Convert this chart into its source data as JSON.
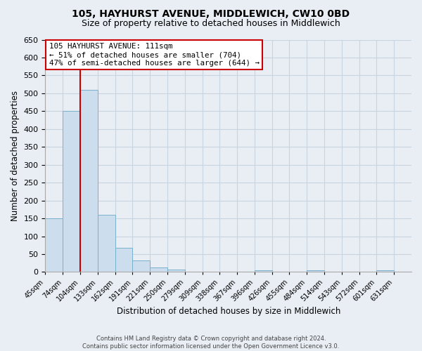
{
  "title": "105, HAYHURST AVENUE, MIDDLEWICH, CW10 0BD",
  "subtitle": "Size of property relative to detached houses in Middlewich",
  "xlabel": "Distribution of detached houses by size in Middlewich",
  "ylabel": "Number of detached properties",
  "footer_line1": "Contains HM Land Registry data © Crown copyright and database right 2024.",
  "footer_line2": "Contains public sector information licensed under the Open Government Licence v3.0.",
  "bin_labels": [
    "45sqm",
    "74sqm",
    "104sqm",
    "133sqm",
    "162sqm",
    "191sqm",
    "221sqm",
    "250sqm",
    "279sqm",
    "309sqm",
    "338sqm",
    "367sqm",
    "396sqm",
    "426sqm",
    "455sqm",
    "484sqm",
    "514sqm",
    "543sqm",
    "572sqm",
    "601sqm",
    "631sqm"
  ],
  "bar_values": [
    150,
    450,
    510,
    160,
    67,
    32,
    12,
    7,
    0,
    0,
    0,
    0,
    5,
    0,
    0,
    5,
    0,
    0,
    0,
    5,
    0
  ],
  "bar_color": "#ccdded",
  "bar_edge_color": "#7ab0cc",
  "vline_bin": 2,
  "vline_color": "#cc0000",
  "annotation_title": "105 HAYHURST AVENUE: 111sqm",
  "annotation_line1": "← 51% of detached houses are smaller (704)",
  "annotation_line2": "47% of semi-detached houses are larger (644) →",
  "annotation_box_facecolor": "#ffffff",
  "annotation_box_edgecolor": "#cc0000",
  "ylim": [
    0,
    650
  ],
  "yticks": [
    0,
    50,
    100,
    150,
    200,
    250,
    300,
    350,
    400,
    450,
    500,
    550,
    600,
    650
  ],
  "grid_color": "#c8d4e0",
  "bg_color": "#e8eef4",
  "title_fontsize": 10,
  "subtitle_fontsize": 9
}
